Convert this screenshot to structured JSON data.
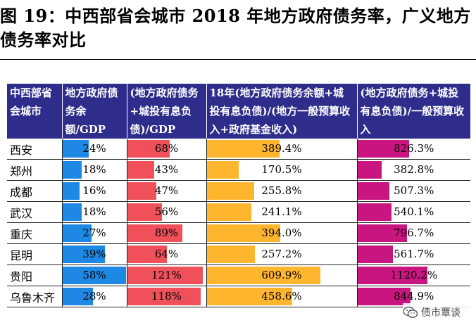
{
  "figure": {
    "title": "图 19：中西部省会城市 2018 年地方政府债务率，广义地方债务率对比"
  },
  "table": {
    "headers": [
      "中西部省会城市",
      "地方政府债务余额/GDP",
      "(地方政府债务+城投有息负债)/GDP",
      "18年(地方政府债务余额+城投有息负债)/(地方一般预算收入+政府基金收入)",
      "(地方政府债务+城投有息负债)/一般预算收入"
    ],
    "bar_colors": [
      "#1e88e5",
      "#f0505a",
      "#ffb52e",
      "#c8157f"
    ],
    "rows": [
      {
        "city": "西安",
        "v1": "24%",
        "v2": "68%",
        "v3": "389.4%",
        "v4": "826.3%"
      },
      {
        "city": "郑州",
        "v1": "18%",
        "v2": "43%",
        "v3": "170.5%",
        "v4": "382.8%"
      },
      {
        "city": "成都",
        "v1": "16%",
        "v2": "47%",
        "v3": "255.8%",
        "v4": "507.3%"
      },
      {
        "city": "武汉",
        "v1": "18%",
        "v2": "56%",
        "v3": "241.1%",
        "v4": "540.1%"
      },
      {
        "city": "重庆",
        "v1": "27%",
        "v2": "89%",
        "v3": "394.0%",
        "v4": "796.7%"
      },
      {
        "city": "昆明",
        "v1": "39%",
        "v2": "64%",
        "v3": "257.2%",
        "v4": "561.7%"
      },
      {
        "city": "贵阳",
        "v1": "58%",
        "v2": "121%",
        "v3": "609.9%",
        "v4": "1120.2%"
      },
      {
        "city": "乌鲁木齐",
        "v1": "28%",
        "v2": "118%",
        "v3": "458.6%",
        "v4": "844.9%"
      }
    ],
    "bar_scale_max": [
      58,
      121,
      609.9,
      1120.2
    ]
  },
  "watermark": {
    "icon": "wechat-icon",
    "text": "债市覃谈"
  }
}
